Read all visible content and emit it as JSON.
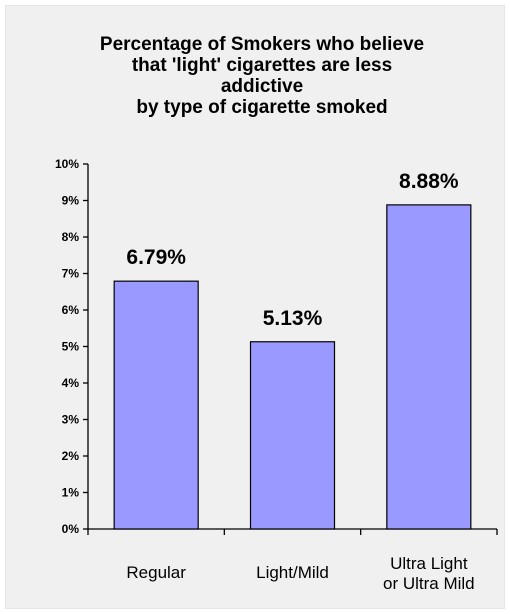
{
  "chart_data": {
    "type": "bar",
    "title_lines": [
      "Percentage of Smokers who believe",
      "that 'light' cigarettes are less",
      "addictive",
      "by type of cigarette smoked"
    ],
    "categories": [
      [
        "Regular"
      ],
      [
        "Light/Mild"
      ],
      [
        "Ultra Light",
        "or Ultra Mild"
      ]
    ],
    "values": [
      6.79,
      5.13,
      8.88
    ],
    "data_labels": [
      "6.79%",
      "5.13%",
      "8.88%"
    ],
    "y_ticks": [
      "0%",
      "1%",
      "2%",
      "3%",
      "4%",
      "5%",
      "6%",
      "7%",
      "8%",
      "9%",
      "10%"
    ],
    "ylim": [
      0,
      10
    ],
    "xlabel": "",
    "ylabel": "",
    "grid": false,
    "legend": "none",
    "colors": {
      "bar_fill": "#9999ff",
      "bar_stroke": "#000000",
      "background": "#f0f0f0"
    }
  }
}
